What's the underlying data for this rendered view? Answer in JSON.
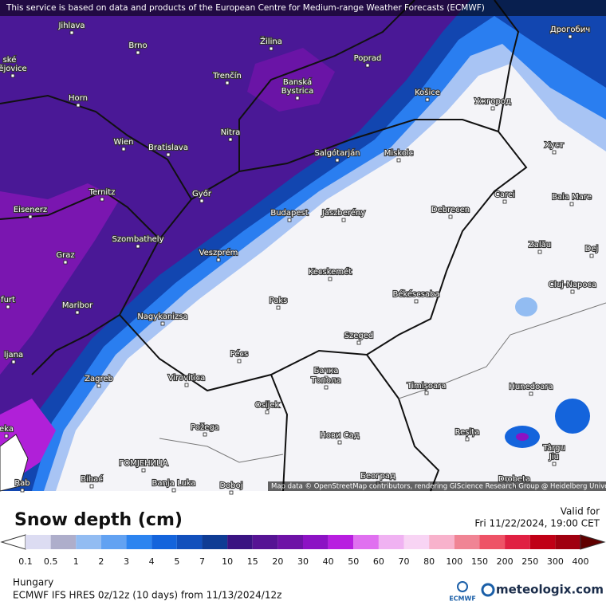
{
  "banner": "This service is based on data and products of the European Centre for Medium-range Weather Forecasts (ECMWF)",
  "cities": [
    "Jihlava",
    "Brno",
    "Žilina",
    "Poprad",
    "Дрогобич",
    "ské",
    "ějovice",
    "Trenčín",
    "Banská",
    "Bystrica",
    "Horn",
    "Košice",
    "Ужгород",
    "Wien",
    "Bratislava",
    "Nitra",
    "Salgótarján",
    "Miskolc",
    "Хуст",
    "Ternitz",
    "Eisenerz",
    "Győr",
    "Budapest",
    "Jászberény",
    "Debrecen",
    "Carei",
    "Baia Mare",
    "Szombathely",
    "Graz",
    "Veszprém",
    "Zalău",
    "Dej",
    "Kecskemét",
    "Cluj-Napoca",
    "furt",
    "Maribor",
    "Paks",
    "Békéscsaba",
    "Nagykanizsa",
    "Szeged",
    "ljana",
    "Pécs",
    "Zagreb",
    "Virovitica",
    "Бачка",
    "Топола",
    "Timișoara",
    "Hunedoara",
    "eka",
    "Osijek",
    "Požega",
    "Нови Сад",
    "Reșița",
    "Târgu",
    "Jiu",
    "ГОМЈЕНИЦА",
    "Bihać",
    "Banja Luka",
    "Doboj",
    "Београд",
    "Drobeta",
    "Rab"
  ],
  "attribution": "Map data © OpenStreetMap contributors, rendering GIScience Research Group @ Heidelberg University",
  "title": "Snow depth (cm)",
  "valid_label": "Valid for",
  "valid_time": "Fri 11/22/2024, 19:00 CET",
  "legend": {
    "labels": [
      0.1,
      0.5,
      1,
      2,
      3,
      4,
      5,
      7,
      10,
      15,
      20,
      30,
      40,
      50,
      60,
      70,
      80,
      100,
      150,
      200,
      250,
      300,
      400
    ],
    "colors": [
      "#ffffff",
      "#dcdcf2",
      "#aeaecb",
      "#92bcf2",
      "#62a2f2",
      "#2c84f0",
      "#1464dc",
      "#1250bc",
      "#0f3c94",
      "#3a1482",
      "#561494",
      "#6e12a6",
      "#8c12c4",
      "#b81ee0",
      "#e070f0",
      "#f0b2f2",
      "#f8d4f4",
      "#f8b2cc",
      "#f08494",
      "#ee5266",
      "#e02042",
      "#c00016",
      "#a00010",
      "#600000"
    ]
  },
  "region": "Hungary",
  "model": "ECMWF IFS HRES 0z/12z (10 days) from 11/13/2024/12z",
  "logo_ecmwf": "ECMWF",
  "logo_brand": "meteologix.com"
}
